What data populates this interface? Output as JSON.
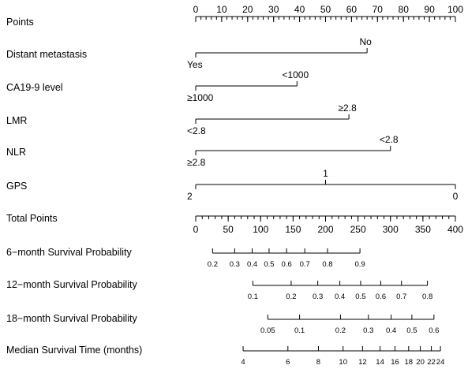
{
  "chart_data": {
    "type": "nomogram",
    "title": "",
    "points_axis": {
      "label": "Points",
      "range": [
        0,
        100
      ],
      "major_ticks": [
        0,
        10,
        20,
        30,
        40,
        50,
        60,
        70,
        80,
        90,
        100
      ],
      "minor_step": 2
    },
    "predictors": [
      {
        "name": "Distant metastasis",
        "levels": [
          {
            "label": "Yes",
            "points": 0
          },
          {
            "label": "No",
            "points": 66
          }
        ]
      },
      {
        "name": "CA19-9 level",
        "levels": [
          {
            "label": "≥1000",
            "points": 0
          },
          {
            "label": "<1000",
            "points": 39
          }
        ]
      },
      {
        "name": "LMR",
        "levels": [
          {
            "label": "<2.8",
            "points": 0
          },
          {
            "label": "≥2.8",
            "points": 59
          }
        ]
      },
      {
        "name": "NLR",
        "levels": [
          {
            "label": "≥2.8",
            "points": 0
          },
          {
            "label": "<2.8",
            "points": 75
          }
        ]
      },
      {
        "name": "GPS",
        "levels": [
          {
            "label": "2",
            "points": 0
          },
          {
            "label": "1",
            "points": 50
          },
          {
            "label": "0",
            "points": 100
          }
        ]
      }
    ],
    "total_points_axis": {
      "label": "Total Points",
      "range": [
        0,
        400
      ],
      "major_ticks": [
        0,
        50,
        100,
        150,
        200,
        250,
        300,
        350,
        400
      ],
      "minor_step": 10
    },
    "outcomes": [
      {
        "name": "6−month Survival Probability",
        "ticks": [
          {
            "label": "0.2",
            "total": 26
          },
          {
            "label": "0.3",
            "total": 60
          },
          {
            "label": "0.4",
            "total": 87
          },
          {
            "label": "0.5",
            "total": 113
          },
          {
            "label": "0.6",
            "total": 140
          },
          {
            "label": "0.7",
            "total": 168
          },
          {
            "label": "0.8",
            "total": 203
          },
          {
            "label": "0.9",
            "total": 253
          }
        ]
      },
      {
        "name": "12−month Survival Probability",
        "ticks": [
          {
            "label": "0.1",
            "total": 88
          },
          {
            "label": "0.2",
            "total": 147
          },
          {
            "label": "0.3",
            "total": 188
          },
          {
            "label": "0.4",
            "total": 222
          },
          {
            "label": "0.5",
            "total": 254
          },
          {
            "label": "0.6",
            "total": 285
          },
          {
            "label": "0.7",
            "total": 317
          },
          {
            "label": "0.8",
            "total": 357
          }
        ]
      },
      {
        "name": "18−month Survival Probability",
        "ticks": [
          {
            "label": "0.05",
            "total": 111
          },
          {
            "label": "0.1",
            "total": 160
          },
          {
            "label": "0.2",
            "total": 223
          },
          {
            "label": "0.3",
            "total": 266
          },
          {
            "label": "0.4",
            "total": 301
          },
          {
            "label": "0.5",
            "total": 333
          },
          {
            "label": "0.6",
            "total": 367
          }
        ]
      },
      {
        "name": "Median Survival Time (months)",
        "ticks": [
          {
            "label": "4",
            "total": 73
          },
          {
            "label": "6",
            "total": 142
          },
          {
            "label": "8",
            "total": 189
          },
          {
            "label": "10",
            "total": 227
          },
          {
            "label": "12",
            "total": 257
          },
          {
            "label": "14",
            "total": 284
          },
          {
            "label": "16",
            "total": 307
          },
          {
            "label": "18",
            "total": 328
          },
          {
            "label": "20",
            "total": 346
          },
          {
            "label": "22",
            "total": 363
          },
          {
            "label": "24",
            "total": 377
          }
        ]
      }
    ]
  }
}
